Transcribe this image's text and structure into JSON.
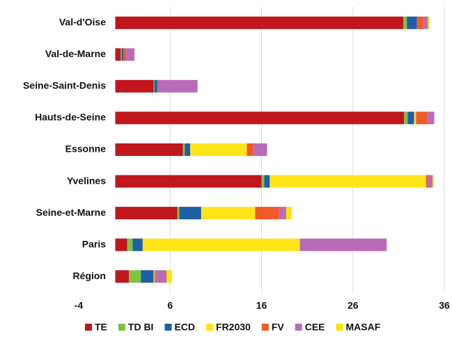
{
  "chart_data": {
    "type": "stacked-bar-horizontal",
    "categories": [
      "Val-d'Oise",
      "Val-de-Marne",
      "Seine-Saint-Denis",
      "Hauts-de-Seine",
      "Essonne",
      "Yvelines",
      "Seine-et-Marne",
      "Paris",
      "Région"
    ],
    "series": [
      {
        "name": "TE",
        "color": "#c0161c",
        "values": [
          31.5,
          0.6,
          4.2,
          31.6,
          7.4,
          16.0,
          6.8,
          1.3,
          1.5
        ]
      },
      {
        "name": "TD BI",
        "color": "#7dc242",
        "values": [
          0.4,
          0.1,
          0.1,
          0.4,
          0.2,
          0.3,
          0.2,
          0.6,
          1.3
        ]
      },
      {
        "name": "ECD",
        "color": "#1f5fa8",
        "values": [
          1.1,
          0.2,
          0.3,
          0.7,
          0.6,
          0.6,
          2.4,
          1.1,
          1.4
        ]
      },
      {
        "name": "FR2030",
        "color": "#ffe51a",
        "values": [
          0,
          0,
          0,
          0.2,
          6.2,
          17.1,
          5.9,
          17.2,
          0.1
        ]
      },
      {
        "name": "FV",
        "color": "#f05a28",
        "values": [
          0.7,
          0.3,
          0,
          1.2,
          0.7,
          0.2,
          2.6,
          0,
          0.1
        ]
      },
      {
        "name": "CEE",
        "color": "#b86cb8",
        "values": [
          0.5,
          0.9,
          4.4,
          0.8,
          1.5,
          0.5,
          0.8,
          9.5,
          1.2
        ]
      },
      {
        "name": "MASAF",
        "color": "#f7e600",
        "values": [
          0.15,
          0,
          0,
          0,
          0,
          0.15,
          0.6,
          0,
          0.6
        ]
      }
    ],
    "xlim": [
      -4,
      36
    ],
    "xticks": [
      -4,
      6,
      16,
      26,
      36
    ],
    "grid": true,
    "legend": "bottom"
  }
}
